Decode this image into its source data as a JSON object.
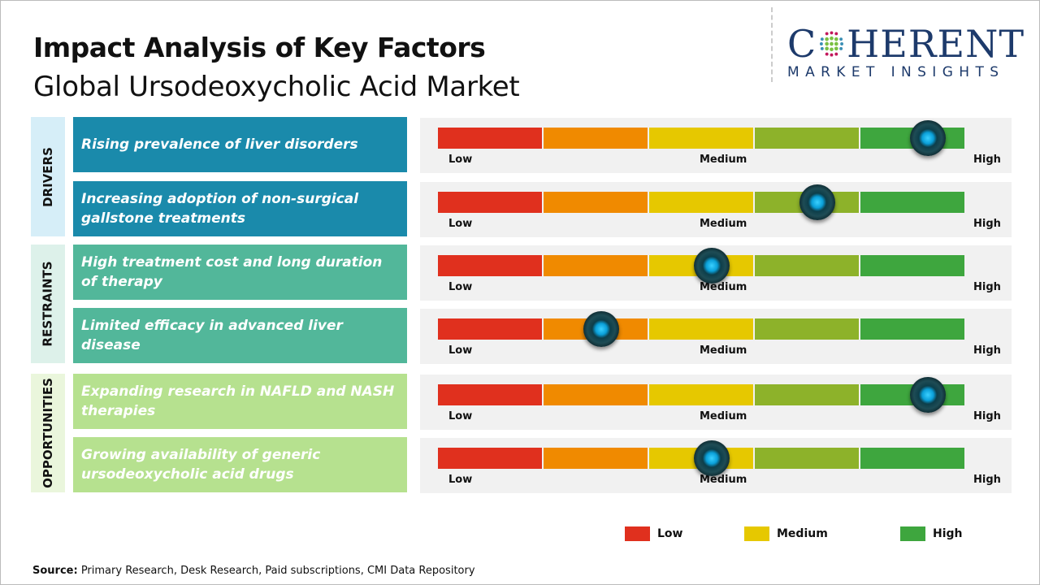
{
  "header": {
    "title": "Impact Analysis of Key Factors",
    "subtitle": "Global Ursodeoxycholic Acid Market"
  },
  "logo": {
    "main_left": "C",
    "main_right": "HERENT",
    "sub": "MARKET INSIGHTS"
  },
  "colors": {
    "drivers": "#1a8aab",
    "restraints": "#52b79a",
    "opportunities": "#b6e18f",
    "drivers_bg": "#d6eef8",
    "restraints_bg": "#ddf1ea",
    "opportunities_bg": "#eaf6dc",
    "scale": [
      "#e0301e",
      "#f08a00",
      "#e6c800",
      "#8db22a",
      "#3ea63e"
    ]
  },
  "chart_data": {
    "type": "gauge",
    "scale_labels": {
      "low": "Low",
      "medium": "Medium",
      "high": "High"
    },
    "categories": [
      {
        "name": "DRIVERS",
        "factors": [
          {
            "label": "Rising prevalence of liver disorders",
            "impact": 0.93
          },
          {
            "label": "Increasing adoption of non-surgical gallstone treatments",
            "impact": 0.72
          }
        ]
      },
      {
        "name": "RESTRAINTS",
        "factors": [
          {
            "label": "High treatment cost and long duration of therapy",
            "impact": 0.52
          },
          {
            "label": "Limited efficacy in advanced liver disease",
            "impact": 0.31
          }
        ]
      },
      {
        "name": "OPPORTUNITIES",
        "factors": [
          {
            "label": "Expanding research in NAFLD and NASH therapies",
            "impact": 0.93
          },
          {
            "label": "Growing availability of generic ursodeoxycholic acid drugs",
            "impact": 0.52
          }
        ]
      }
    ],
    "legend": [
      {
        "label": "Low",
        "color": "#e0301e"
      },
      {
        "label": "Medium",
        "color": "#e6c800"
      },
      {
        "label": "High",
        "color": "#3ea63e"
      }
    ]
  },
  "footer": {
    "source_label": "Source:",
    "source_text": " Primary Research, Desk Research, Paid subscriptions, CMI Data Repository"
  }
}
